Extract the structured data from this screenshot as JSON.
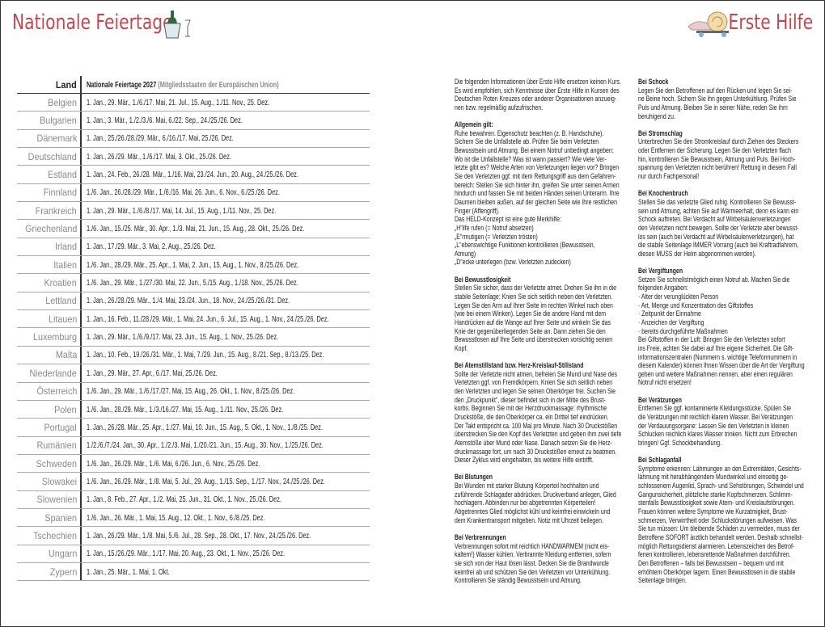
{
  "header": {
    "left_title": "Nationale Feiertage",
    "right_title": "Erste Hilfe",
    "left_icon": "champagne-bucket-icon",
    "right_icon": "snail-on-skateboard-icon",
    "title_color": "#c4474f"
  },
  "table": {
    "col_land": "Land",
    "col_title": "Nationale Feiertage 2027",
    "col_subtitle": "(Mitgliedsstaaten der Europäischen Union)",
    "rows": [
      {
        "land": "Belgien",
        "dates": "1. Jan., 29. Mär., 1./6./17. Mai, 21. Jul., 15. Aug., 1./11. Nov., 25. Dez."
      },
      {
        "land": "Bulgarien",
        "dates": "1. Jan., 3. Mär., 1./2./3./6. Mai, 6./22. Sep., 24./25./26. Dez."
      },
      {
        "land": "Dänemark",
        "dates": "1. Jan., 25./26./28./29. Mär., 6./16./17. Mai, 25./26. Dez."
      },
      {
        "land": "Deutschland",
        "dates": "1. Jan., 26./29. Mär., 1./6./17. Mai, 3. Okt., 25./26. Dez."
      },
      {
        "land": "Estland",
        "dates": "1. Jan., 24. Feb., 26./28. Mär., 1./16. Mai, 23./24. Jun., 20. Aug., 24./25./26. Dez."
      },
      {
        "land": "Finnland",
        "dates": "1./6. Jan., 26./28./29. Mär., 1./6./16. Mai, 26. Jun., 6. Nov., 6./25./26. Dez."
      },
      {
        "land": "Frankreich",
        "dates": "1. Jan., 29. Mär., 1./6./8./17. Mai, 14. Jul., 15. Aug., 1./11. Nov., 25. Dez."
      },
      {
        "land": "Griechenland",
        "dates": "1./6. Jan., 15./25. Mär., 30. Apr., 1./3. Mai, 21. Jun., 15. Aug., 28. Okt., 25./26. Dez."
      },
      {
        "land": "Irland",
        "dates": "1. Jan., 17./29. Mär., 3. Mai, 2. Aug., 25./26. Dez."
      },
      {
        "land": "Italien",
        "dates": "1./6. Jan., 28./29. Mär., 25. Apr., 1. Mai, 2. Jun., 15. Aug., 1. Nov., 8./25./26. Dez."
      },
      {
        "land": "Kroatien",
        "dates": "1./6. Jan., 29. Mär., 1./27./30. Mai, 22. Jun., 5./15. Aug., 1./18. Nov., 25./26. Dez."
      },
      {
        "land": "Lettland",
        "dates": "1. Jan., 26./28./29. Mär., 1./4. Mai, 23./24. Jun., 18. Nov., 24./25./26./31. Dez."
      },
      {
        "land": "Litauen",
        "dates": "1. Jan., 16. Feb., 11./28./29. Mär., 1. Mai, 24. Jun., 6. Jul., 15. Aug., 1. Nov., 24./25./26. Dez."
      },
      {
        "land": "Luxemburg",
        "dates": "1. Jan., 29. Mär., 1./6./9./17. Mai, 23. Jun., 15. Aug., 1. Nov., 25./26. Dez."
      },
      {
        "land": "Malta",
        "dates": "1. Jan., 10. Feb., 19./26./31. Mär., 1. Mai, 7./29. Jun., 15. Aug., 8./21. Sep., 8./13./25. Dez."
      },
      {
        "land": "Niederlande",
        "dates": "1. Jan., 29. Mär., 27. Apr., 6./17. Mai, 25./26. Dez."
      },
      {
        "land": "Österreich",
        "dates": "1./6. Jan., 29. Mär., 1./6./17./27. Mai, 15. Aug., 26. Okt., 1. Nov., 8./25./26. Dez."
      },
      {
        "land": "Polen",
        "dates": "1./6. Jan., 28./29. Mär., 1./3./16./27. Mai, 15. Aug., 1./11. Nov., 25./26. Dez."
      },
      {
        "land": "Portugal",
        "dates": "1. Jan., 26./28. Mär., 25. Apr., 1./27. Mai, 10. Jun., 15. Aug., 5. Okt., 1. Nov., 1./8./25. Dez."
      },
      {
        "land": "Rumänien",
        "dates": "1./2./6./7./24. Jan., 30. Apr., 1./2./3. Mai, 1./20./21. Jun., 15. Aug., 30. Nov., 1./25./26. Dez."
      },
      {
        "land": "Schweden",
        "dates": "1./6. Jan., 26./29. Mär., 1./6. Mai, 6./26. Jun., 6. Nov., 25./26. Dez."
      },
      {
        "land": "Slowakei",
        "dates": "1./6. Jan., 26./29. Mär., 1./8. Mai, 5. Jul., 29. Aug., 1./15. Sep., 1./17. Nov., 24./25./26. Dez."
      },
      {
        "land": "Slowenien",
        "dates": "1. Jan., 8. Feb., 27. Apr., 1./2. Mai, 25. Jun., 31. Okt., 1. Nov., 25./26. Dez."
      },
      {
        "land": "Spanien",
        "dates": "1./6. Jan., 26. Mär., 1. Mai, 15. Aug., 12. Okt., 1. Nov., 6./8./25. Dez."
      },
      {
        "land": "Tschechien",
        "dates": "1. Jan., 26./29. Mär., 1./8. Mai, 5./6. Jul., 28. Sep., 28. Okt., 17. Nov., 24./25./26. Dez."
      },
      {
        "land": "Ungarn",
        "dates": "1. Jan., 15./26./29. Mär., 1./17. Mai, 20. Aug., 23. Okt., 1. Nov., 25./26. Dez."
      },
      {
        "land": "Zypern",
        "dates": "1. Jan., 25. Mär., 1. Mai, 1. Okt."
      }
    ]
  },
  "first_aid": {
    "columns": [
      [
        {
          "heading": "",
          "lines": [
            "Die folgenden Informationen über Erste Hilfe ersetzen keinen Kurs.",
            "Es wird empfohlen, sich Kenntnisse über Erste Hilfe in Kursen des",
            "Deutschen Roten Kreuzes oder anderer Organisationen anzueig-",
            "nen bzw. regelmäßig aufzufrischen."
          ]
        },
        {
          "heading": "Allgemein gilt:",
          "lines": [
            "Ruhe bewahren. Eigenschutz beachten (z. B. Handschuhe).",
            "Sichern Sie die Unfallstelle ab. Prüfen Sie beim Verletzten",
            "Bewusstsein und Atmung. Bei einem Notruf unbedingt angeben:",
            "Wo ist die Unfallstelle? Was ist wann passiert? Wie viele Ver-",
            "letzte gibt es? Welche Arten von Verletzungen liegen vor? Bringen",
            "Sie den Verletzten ggf. mit dem Rettungsgriff aus dem Gefahren-",
            "bereich: Stellen Sie sich hinter ihn, greifen Sie unter seinen Armen",
            "hindurch und fassen Sie mit beiden Händen seinen Unterarm. Ihre",
            "Daumen bleiben außen, auf der gleichen Seite wie Ihre restlichen",
            "Finger (Affengriff).",
            "Das HELD-Konzept ist eine gute Merkhilfe:",
            "„H“ilfe rufen (= Notruf absetzen)",
            "„E“rmutigen (= Verletzten trösten)",
            "„L“ebenswichtige Funktionen kontrollieren (Bewusstsein,",
            "    Atmung)",
            "„D“ecke unterlegen (bzw. Verletzten zudecken)"
          ]
        },
        {
          "heading": "Bei Bewusstlosigkeit",
          "lines": [
            "Stellen Sie sicher, dass der Verletzte atmet. Drehen Sie ihn in die",
            "stabile Seitenlage: Knien Sie sich seitlich neben den Verletzten.",
            "Legen Sie den Arm auf Ihrer Seite im rechten Winkel nach oben",
            "(wie bei einem Winken). Legen Sie die andere Hand mit dem",
            "Handrücken auf die Wange auf Ihrer Seite und winkeln Sie das",
            "Knie der gegenüberliegenden Seite an. Dann ziehen Sie den",
            "Bewusstlosen auf Ihre Seite und überstrecken vorsichtig seinen",
            "Kopf."
          ]
        },
        {
          "heading": "Bei Atemstillstand bzw. Herz-Kreislauf-Stillstand",
          "lines": [
            "Sollte der Verletzte nicht atmen, befreien Sie Mund und Nase des",
            "Verletzten ggf. von Fremdkörpern. Knien Sie sich seitlich neben",
            "den Verletzten und legen Sie seinen Oberkörper frei. Suchen Sie",
            "den „Druckpunkt“, dieser befindet sich in der Mitte des Brust-",
            "korbs. Beginnen Sie mit der Herzdruckmassage: rhythmische",
            "Druckstöße, die den Oberkörper ca. ein Drittel tief eindrücken.",
            "Der Takt entspricht ca. 100 Mal pro Minute. Nach 30 Druckstößen",
            "überstrecken Sie den Kopf des Verletzten und geben ihm zwei tiefe",
            "Atemstöße über Mund oder Nase. Danach setzen Sie die Herz-",
            "druckmassage fort, um nach 30 Druckstößen erneut zu beatmen.",
            "Dieser Zyklus wird eingehalten, bis weitere Hilfe eintrifft."
          ]
        },
        {
          "heading": "Bei Blutungen",
          "lines": [
            "Bei Wunden mit starker Blutung Körperteil hochhalten und",
            "zuführende Schlagader abdrücken. Druckverband anlegen, Glied",
            "hochlagern. Abbinden nur bei abgetrennten Körperteilen!",
            "Abgetrenntes Glied möglichst kühl und keimfrei einwickeln und",
            "dem Krankentransport mitgeben. Notiz mit Uhrzeit beilegen."
          ]
        },
        {
          "heading": "Bei Verbrennungen",
          "lines": [
            "Verbrennungen sofort mit reichlich HANDWARMEM (nicht eis-",
            "kaltem!) Wasser kühlen. Verbrannte Kleidung entfernen, sofern",
            "sie sich von der Haut lösen lässt. Decken Sie die Brandwunde",
            "keimfrei ab und schützen Sie den Verletzten vor Unterkühlung.",
            "Kontrollieren Sie ständig Bewusstsein und Atmung."
          ]
        }
      ],
      [
        {
          "heading": "Bei Schock",
          "lines": [
            "Legen Sie den Betroffenen auf den Rücken und legen Sie sei-",
            "ne Beine hoch. Sichern Sie ihn gegen Unterkühlung. Prüfen Sie",
            "Puls und Atmung. Bleiben Sie in seiner Nähe, reden Sie ihm",
            "beruhigend zu."
          ]
        },
        {
          "heading": "Bei Stromschlag",
          "lines": [
            "Unterbrechen Sie den Stromkreislauf durch Ziehen des Steckers",
            "oder Entfernen der Sicherung. Legen Sie den Verletzten flach",
            "hin, kontrollieren Sie Bewusstsein, Atmung und Puls. Bei Hoch-",
            "spannung den Verletzten nicht berühren! Rettung in diesem Fall",
            "nur durch Fachpersonal!"
          ]
        },
        {
          "heading": "Bei Knochenbruch",
          "lines": [
            "Stellen Sie das verletzte Glied ruhig. Kontrollieren Sie Bewusst-",
            "sein und Atmung, achten Sie auf Wärmeerhalt, denn es kann ein",
            "Schock auftreten. Bei Verdacht auf Wirbelsäulenverletzungen",
            "den Verletzten nicht bewegen. Sollte der Verletzte aber bewusst-",
            "los sein (auch bei Verdacht auf Wirbelsäulenverletzungen), hat",
            "die stabile Seitenlage IMMER Vorrang (auch bei Kraftradfahrern,",
            "diesen MUSS der Helm abgenommen werden)."
          ]
        },
        {
          "heading": "Bei Vergiftungen",
          "lines": [
            "Setzen Sie schnellstmöglich einen Notruf ab. Machen Sie die",
            "folgenden Angaben:",
            "· Alter der verunglückten Person",
            "· Art, Menge und Konzentration des Giftstoffes",
            "· Zeitpunkt der Einnahme",
            "· Anzeichen der Vergiftung",
            "· bereits durchgeführte Maßnahmen",
            "Bei Giftstoffen in der Luft: Bringen Sie den Verletzten sofort",
            "ins Freie, achten Sie dabei auf Ihre eigene Sicherheit. Die Gift-",
            "informationszentralen (Nummern s. wichtige Telefonnummern in",
            "diesem Kalender) können Ihnen Wissen über die Art der Vergiftung",
            "geben und weitere Maßnahmen nennen, aber einen regulären",
            "Notruf nicht ersetzen!"
          ]
        },
        {
          "heading": "Bei Verätzungen",
          "lines": [
            "Entfernen Sie ggf. kontaminierte Kleidungsstücke. Spülen Sie",
            "die Verätzungen mit reichlich klarem Wasser. Bei Verätzungen",
            "der Verdauungsorgane: Lassen Sie den Verletzten in kleinen",
            "Schlucken reichlich klares Wasser trinken. Nicht zum Erbrechen",
            "bringen! Ggf. Schockbehandlung."
          ]
        },
        {
          "heading": "Bei Schlaganfall",
          "lines": [
            "Symptome erkennen: Lähmungen an den Extremitäten, Gesichts-",
            "lähmung mit herabhängendem Mundwinkel und einseitig ge-",
            "schlossenem Augenlid, Sprach- und Sehstörungen, Schwindel und",
            "Gangunsicherheit, plötzliche starke Kopfschmerzen. Schlimm-",
            "stenfalls Bewusstlosigkeit sowie Atem- und Kreislaufstörungen.",
            "Frauen können weitere Symptome wie Kurzatmigkeit, Brust-",
            "schmerzen, Verwirrtheit oder Schluckstörungen aufweisen. Was",
            "Sie tun müssen: Um bleibende Schäden zu vermeiden, muss der",
            "Betroffene SOFORT ärztlich behandelt werden. Deshalb schnellst-",
            "möglich Rettungsdienst alarmieren. Lebenszeichen des Betrof-",
            "fenen kontrollieren, lebensrettende Maßnahmen durchführen.",
            "Den Betroffenen – falls bei Bewusstsein – bequem und mit",
            "erhöhtem Oberkörper lagern. Einen Bewusstlosen in die stabile",
            "Seitenlage bringen."
          ]
        }
      ]
    ]
  }
}
